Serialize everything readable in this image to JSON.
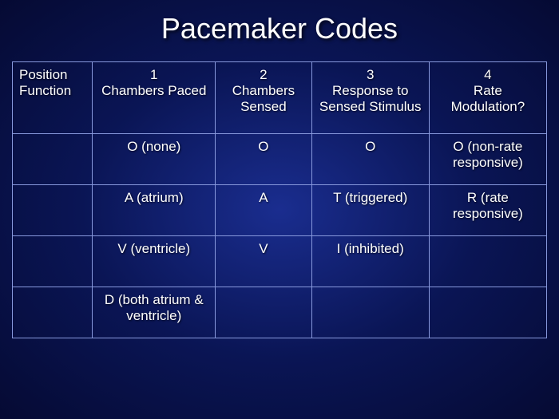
{
  "title": "Pacemaker Codes",
  "table": {
    "header": {
      "position_label": "Position",
      "function_label": "Function",
      "columns": [
        {
          "num": "1",
          "name": "Chambers Paced"
        },
        {
          "num": "2",
          "name": "Chambers Sensed"
        },
        {
          "num": "3",
          "name": "Response to Sensed Stimulus"
        },
        {
          "num": "4",
          "name": "Rate Modulation?"
        }
      ]
    },
    "rows": [
      {
        "c1": "O (none)",
        "c2": "O",
        "c3": "O",
        "c4": "O (non-rate responsive)"
      },
      {
        "c1": "A (atrium)",
        "c2": "A",
        "c3": "T (triggered)",
        "c4": "R (rate responsive)"
      },
      {
        "c1": "V (ventricle)",
        "c2": "V",
        "c3": "I (inhibited)",
        "c4": ""
      },
      {
        "c1": "D (both atrium & ventricle)",
        "c2": "",
        "c3": "",
        "c4": ""
      }
    ]
  },
  "styling": {
    "background_gradient": [
      "#1a2d8f",
      "#0a1555",
      "#050a33"
    ],
    "text_color": "#ffffff",
    "border_color": "#8899dd",
    "title_fontsize": 36,
    "cell_fontsize": 17,
    "font_family": "Arial"
  }
}
